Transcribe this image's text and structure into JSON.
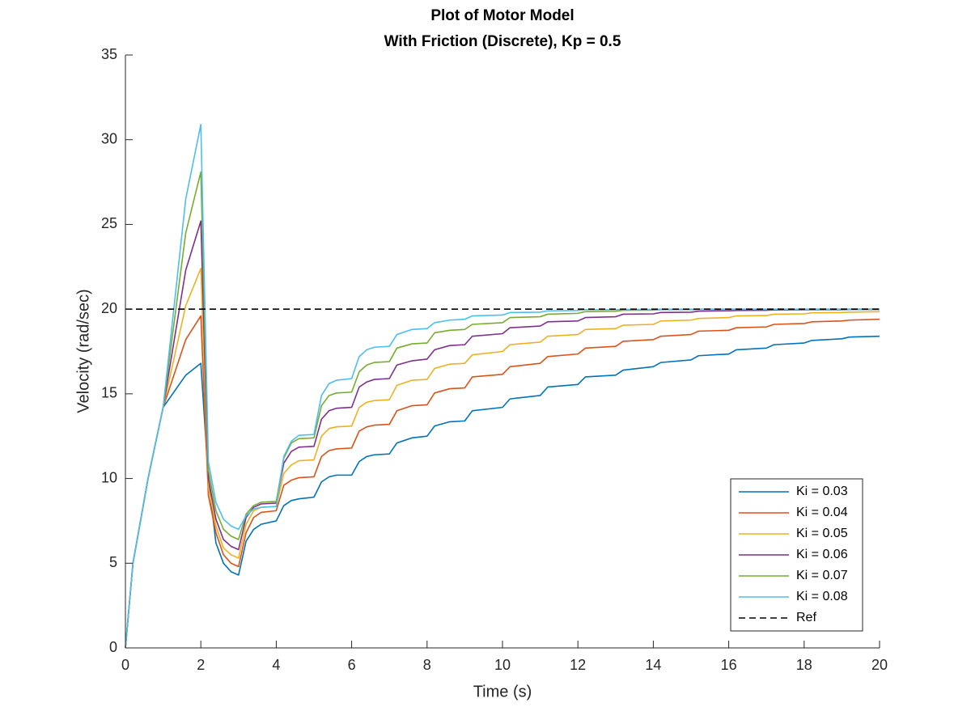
{
  "chart_data": {
    "type": "line",
    "title": [
      "Plot of Motor Model",
      "With Friction (Discrete), Kp = 0.5"
    ],
    "x_label": "Time (s)",
    "y_label": "Velocity (rad/sec)",
    "xlim": [
      0,
      20
    ],
    "ylim": [
      0,
      35
    ],
    "xticks": [
      0,
      2,
      4,
      6,
      8,
      10,
      12,
      14,
      16,
      18,
      20
    ],
    "yticks": [
      0,
      5,
      10,
      15,
      20,
      25,
      30,
      35
    ],
    "legend": "lower right",
    "x": [
      0,
      0.2,
      0.6,
      1,
      1.6,
      2,
      2.2,
      2.4,
      2.6,
      2.8,
      3,
      3.2,
      3.4,
      3.6,
      4,
      4.2,
      4.4,
      4.6,
      5,
      5.2,
      5.4,
      5.6,
      6,
      6.2,
      6.4,
      6.6,
      7,
      7.2,
      7.6,
      8,
      8.2,
      8.6,
      9,
      9.2,
      10,
      10.2,
      11,
      11.2,
      12,
      12.2,
      13,
      13.2,
      14,
      14.2,
      15,
      15.2,
      16,
      16.2,
      17,
      17.2,
      18,
      18.2,
      19,
      19.2,
      20
    ],
    "series": [
      {
        "name": "Ki = 0.03",
        "color": "#0072BD",
        "values": [
          0,
          5,
          10,
          14.2,
          16.1,
          16.8,
          10,
          6.2,
          5,
          4.5,
          4.3,
          6.3,
          7,
          7.3,
          7.5,
          8.4,
          8.7,
          8.8,
          8.9,
          9.8,
          10.1,
          10.2,
          10.2,
          11,
          11.3,
          11.4,
          11.45,
          12.1,
          12.4,
          12.5,
          13.1,
          13.35,
          13.4,
          14,
          14.2,
          14.7,
          14.9,
          15.4,
          15.55,
          16,
          16.1,
          16.4,
          16.6,
          16.85,
          17,
          17.25,
          17.35,
          17.6,
          17.7,
          17.9,
          18,
          18.15,
          18.25,
          18.35,
          18.4
        ]
      },
      {
        "name": "Ki = 0.04",
        "color": "#D95319",
        "values": [
          0,
          5,
          10,
          14.2,
          18.2,
          19.6,
          9,
          6.8,
          5.5,
          5,
          4.8,
          6.8,
          7.7,
          8,
          8.1,
          9.6,
          9.9,
          10.05,
          10.1,
          11.3,
          11.65,
          11.75,
          11.8,
          12.8,
          13.05,
          13.15,
          13.2,
          14,
          14.3,
          14.35,
          15.05,
          15.3,
          15.35,
          16,
          16.15,
          16.6,
          16.8,
          17.2,
          17.35,
          17.7,
          17.8,
          18.1,
          18.2,
          18.4,
          18.5,
          18.7,
          18.75,
          18.9,
          18.95,
          19.1,
          19.15,
          19.25,
          19.3,
          19.35,
          19.4
        ]
      },
      {
        "name": "Ki = 0.05",
        "color": "#EDB120",
        "values": [
          0,
          5,
          10,
          14.2,
          20.2,
          22.4,
          9.5,
          7.2,
          5.9,
          5.5,
          5.3,
          7.3,
          8.1,
          8.3,
          8.35,
          10.3,
          10.8,
          11.05,
          11.1,
          12.5,
          12.95,
          13.05,
          13.1,
          14.2,
          14.5,
          14.6,
          14.65,
          15.5,
          15.8,
          15.85,
          16.5,
          16.75,
          16.8,
          17.3,
          17.5,
          17.9,
          18.05,
          18.4,
          18.5,
          18.8,
          18.85,
          19.05,
          19.1,
          19.3,
          19.35,
          19.45,
          19.5,
          19.6,
          19.62,
          19.7,
          19.72,
          19.78,
          19.8,
          19.82,
          19.85
        ]
      },
      {
        "name": "Ki = 0.06",
        "color": "#7E2F8E",
        "values": [
          0,
          5,
          10,
          14.2,
          22.3,
          25.2,
          10,
          7.6,
          6.4,
          6,
          5.8,
          7.7,
          8.3,
          8.5,
          8.55,
          10.9,
          11.6,
          11.85,
          11.9,
          13.5,
          14,
          14.15,
          14.2,
          15.4,
          15.7,
          15.85,
          15.9,
          16.7,
          16.95,
          17.05,
          17.6,
          17.85,
          17.9,
          18.4,
          18.55,
          18.9,
          19,
          19.25,
          19.3,
          19.5,
          19.55,
          19.7,
          19.72,
          19.8,
          19.82,
          19.88,
          19.9,
          19.92,
          19.93,
          19.95,
          19.96,
          19.97,
          19.97,
          19.98,
          19.98
        ]
      },
      {
        "name": "Ki = 0.07",
        "color": "#77AC30",
        "values": [
          0,
          5,
          10,
          14.2,
          24.5,
          28.1,
          10.5,
          8.1,
          7,
          6.6,
          6.4,
          7.9,
          8.4,
          8.6,
          8.65,
          11.2,
          12.1,
          12.35,
          12.4,
          14.3,
          14.9,
          15.05,
          15.1,
          16.3,
          16.7,
          16.85,
          16.9,
          17.7,
          17.95,
          18,
          18.6,
          18.75,
          18.8,
          19.1,
          19.2,
          19.5,
          19.55,
          19.7,
          19.75,
          19.85,
          19.87,
          19.93,
          19.94,
          19.97,
          19.97,
          19.98,
          19.98,
          19.99,
          19.99,
          19.99,
          19.99,
          20,
          20,
          20,
          20
        ]
      },
      {
        "name": "Ki = 0.08",
        "color": "#4DBEEE",
        "values": [
          0,
          5,
          10,
          14.2,
          26.5,
          30.9,
          11,
          8.6,
          7.6,
          7.2,
          7,
          7.8,
          8.2,
          8.3,
          8.35,
          11.3,
          12.2,
          12.55,
          12.6,
          14.9,
          15.6,
          15.8,
          15.9,
          17.2,
          17.6,
          17.75,
          17.8,
          18.5,
          18.8,
          18.85,
          19.2,
          19.35,
          19.4,
          19.6,
          19.65,
          19.8,
          19.82,
          19.9,
          19.92,
          19.96,
          19.96,
          19.98,
          19.98,
          19.99,
          19.99,
          20,
          20,
          20,
          20,
          20,
          20,
          20,
          20,
          20,
          20
        ]
      },
      {
        "name": "Ref",
        "color": "#000000",
        "dash": true,
        "x": [
          0,
          20
        ],
        "values": [
          20,
          20
        ]
      }
    ]
  }
}
